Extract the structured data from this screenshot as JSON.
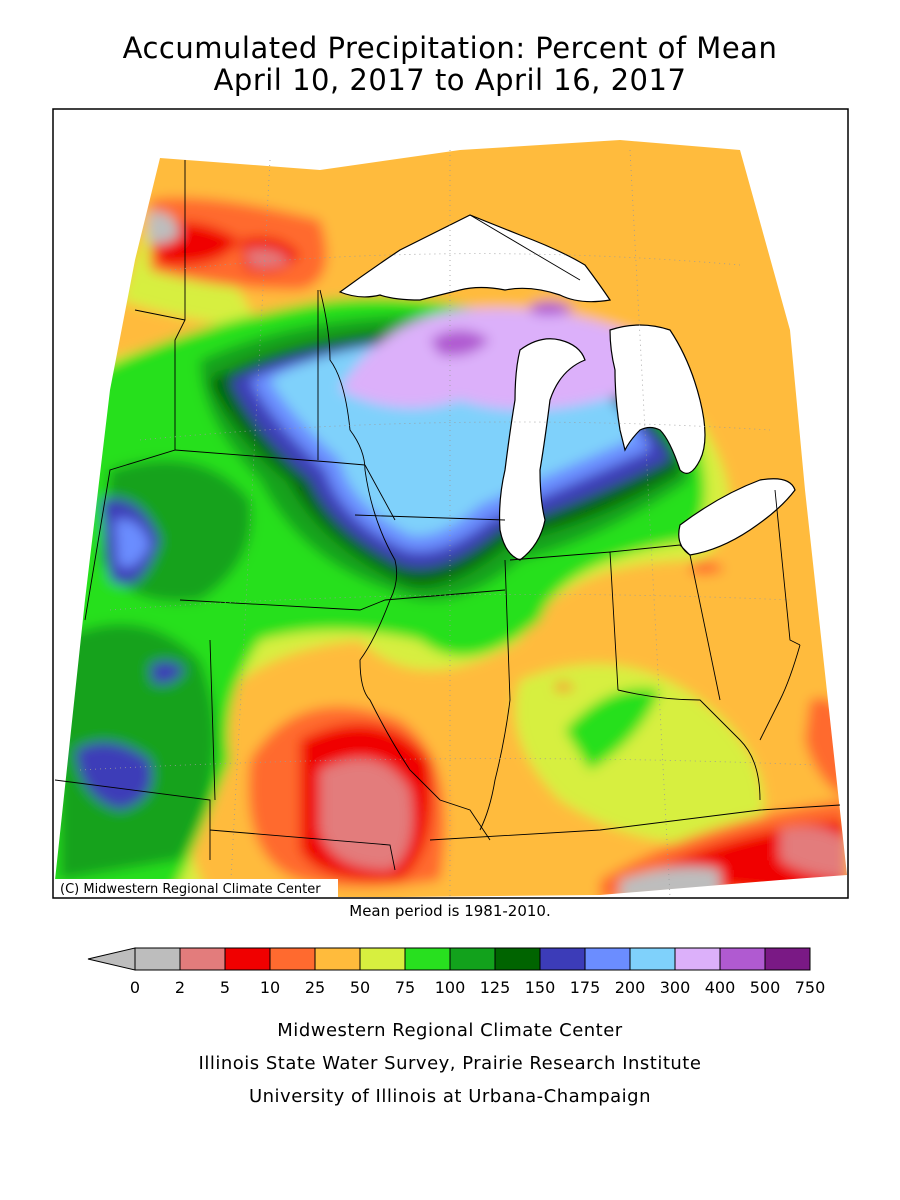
{
  "title": {
    "line1": "Accumulated Precipitation: Percent of Mean",
    "line2": "April 10, 2017 to April 16, 2017"
  },
  "copyright": "(C) Midwestern Regional Climate Center",
  "mean_period": "Mean period is 1981-2010.",
  "legend": {
    "colors": [
      "#bdbdbd",
      "#e37c7c",
      "#f00000",
      "#ff6a2f",
      "#ffbb3c",
      "#d7ef3f",
      "#28e01f",
      "#12a21c",
      "#006400",
      "#3c3cb8",
      "#6b8dff",
      "#7fd1fb",
      "#dcb0fa",
      "#b05ad1",
      "#7a1985"
    ],
    "arrow_color": "#bdbdbd",
    "labels": [
      "0",
      "2",
      "5",
      "10",
      "25",
      "50",
      "75",
      "100",
      "125",
      "150",
      "175",
      "200",
      "300",
      "400",
      "500",
      "750"
    ]
  },
  "credits": {
    "line1": "Midwestern Regional Climate Center",
    "line2": "Illinois State Water Survey, Prairie Research Institute",
    "line3": "University of Illinois at Urbana-Champaign"
  }
}
